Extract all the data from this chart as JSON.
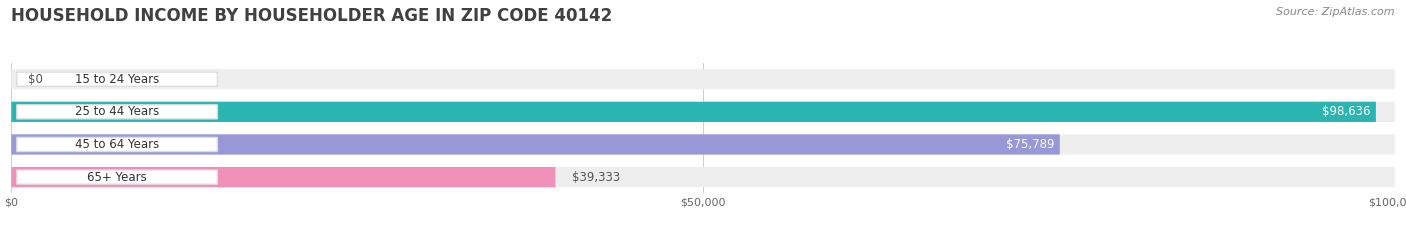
{
  "title": "HOUSEHOLD INCOME BY HOUSEHOLDER AGE IN ZIP CODE 40142",
  "source": "Source: ZipAtlas.com",
  "categories": [
    "15 to 24 Years",
    "25 to 44 Years",
    "45 to 64 Years",
    "65+ Years"
  ],
  "values": [
    0,
    98636,
    75789,
    39333
  ],
  "bar_colors": [
    "#c4a0cc",
    "#2ab5b0",
    "#9898d8",
    "#f090b8"
  ],
  "bar_bg_color": "#eeeeee",
  "max_value": 100000,
  "xticks": [
    0,
    50000,
    100000
  ],
  "xtick_labels": [
    "$0",
    "$50,000",
    "$100,000"
  ],
  "value_labels": [
    "$0",
    "$98,636",
    "$75,789",
    "$39,333"
  ],
  "label_inside": [
    false,
    true,
    true,
    false
  ],
  "background_color": "#ffffff",
  "title_fontsize": 12,
  "bar_height": 0.62,
  "label_fontsize": 8.5,
  "category_fontsize": 8.5,
  "source_fontsize": 8
}
